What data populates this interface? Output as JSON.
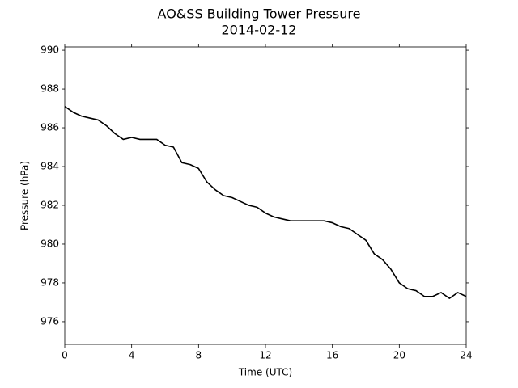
{
  "chart_data": {
    "type": "line",
    "title": "AO&SS Building Tower Pressure",
    "subtitle": "2014-02-12",
    "xlabel": "Time (UTC)",
    "ylabel": "Pressure (hPa)",
    "x": [
      0,
      0.5,
      1,
      1.5,
      2,
      2.5,
      3,
      3.5,
      4,
      4.5,
      5,
      5.5,
      6,
      6.5,
      7,
      7.5,
      8,
      8.5,
      9,
      9.5,
      10,
      10.5,
      11,
      11.5,
      12,
      12.5,
      13,
      13.5,
      14,
      14.5,
      15,
      15.5,
      16,
      16.5,
      17,
      17.5,
      18,
      18.5,
      19,
      19.5,
      20,
      20.5,
      21,
      21.5,
      22,
      22.5,
      23,
      23.5,
      24
    ],
    "series": [
      {
        "name": "Pressure",
        "color": "#000000",
        "values": [
          987.1,
          986.8,
          986.6,
          986.5,
          986.4,
          986.1,
          985.7,
          985.4,
          985.5,
          985.4,
          985.4,
          985.4,
          985.1,
          985.0,
          984.2,
          984.1,
          983.9,
          983.2,
          982.8,
          982.5,
          982.4,
          982.2,
          982.0,
          981.9,
          981.6,
          981.4,
          981.3,
          981.2,
          981.2,
          981.2,
          981.2,
          981.2,
          981.1,
          980.9,
          980.8,
          980.5,
          980.2,
          979.5,
          979.2,
          978.7,
          978.0,
          977.7,
          977.6,
          977.3,
          977.3,
          977.5,
          977.2,
          977.5,
          977.3
        ]
      }
    ],
    "xlim": [
      0,
      24
    ],
    "xticks": [
      0,
      4,
      8,
      12,
      16,
      20,
      24
    ],
    "ylim": [
      974.83,
      990.17
    ],
    "yticks": [
      976,
      978,
      980,
      982,
      984,
      986,
      988,
      990
    ]
  }
}
